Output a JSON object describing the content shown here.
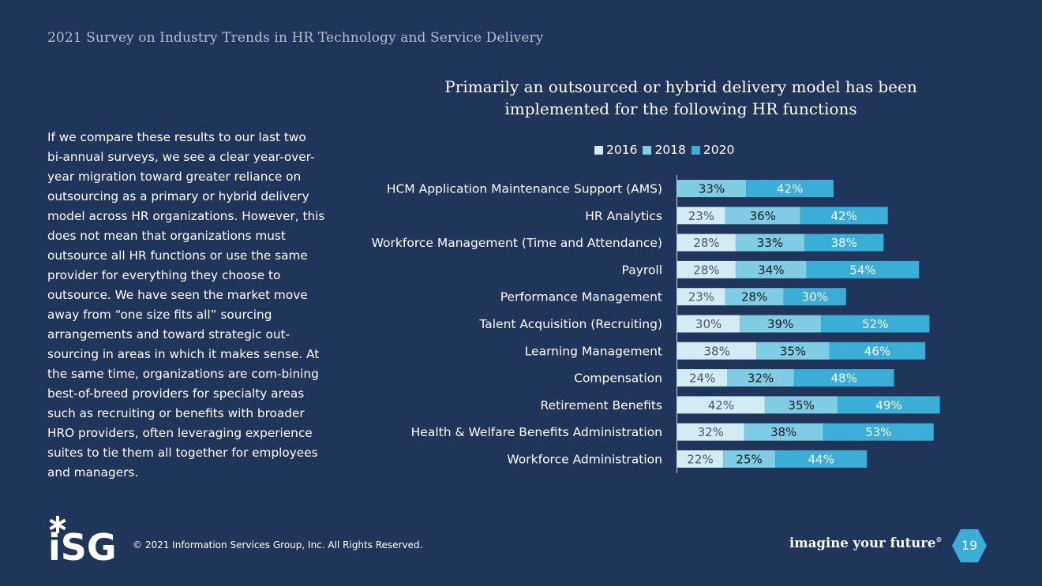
{
  "header": {
    "title": "2021 Survey on Industry Trends in HR Technology and Service Delivery"
  },
  "body_text": "If we compare these results to our last two bi-annual surveys, we see a clear year-over-year migration toward greater reliance on outsourcing as a primary or hybrid delivery model across HR organizations. However, this does not mean that organizations must outsource all HR functions or use the same provider for everything they choose to outsource. We have seen the market move away from “one size fits all” sourcing arrangements and toward strategic out-sourcing in areas in which it makes sense. At the same time, organizations are com-bining best-of-breed providers for specialty areas such as recruiting or benefits with broader HRO providers, often leveraging experience suites to tie them all together for employees and managers.",
  "chart_data": {
    "type": "bar",
    "orientation": "horizontal",
    "stacked": true,
    "title": "Primarily an outsourced or hybrid delivery model has been implemented for the following HR functions",
    "categories": [
      "HCM Application Maintenance Support (AMS)",
      "HR Analytics",
      "Workforce Management (Time and Attendance)",
      "Payroll",
      "Performance Management",
      "Talent Acquisition (Recruiting)",
      "Learning Management",
      "Compensation",
      "Retirement Benefits",
      "Health & Welfare Benefits Administration",
      "Workforce Administration"
    ],
    "series": [
      {
        "name": "2016",
        "color": "#d3ecf4",
        "label_color": "#4a5568",
        "values": [
          null,
          23,
          28,
          28,
          23,
          30,
          38,
          24,
          42,
          32,
          22
        ]
      },
      {
        "name": "2018",
        "color": "#7fcde5",
        "label_color": "#1a1a1a",
        "values": [
          33,
          36,
          33,
          34,
          28,
          39,
          35,
          32,
          35,
          38,
          25
        ]
      },
      {
        "name": "2020",
        "color": "#3aaed6",
        "label_color": "#ffffff",
        "values": [
          42,
          42,
          38,
          54,
          30,
          52,
          46,
          48,
          49,
          53,
          44
        ]
      }
    ],
    "value_suffix": "%",
    "xlabel": "",
    "ylabel": "",
    "legend": "top",
    "grid": false
  },
  "footer": {
    "logo_text": "iSG",
    "copyright": "© 2021 Information Services Group, Inc. All Rights Reserved.",
    "tagline": "imagine your future",
    "tagline_mark": "®",
    "page_number": "19"
  },
  "colors": {
    "background": "#1f3559",
    "accent": "#3aaed6"
  }
}
